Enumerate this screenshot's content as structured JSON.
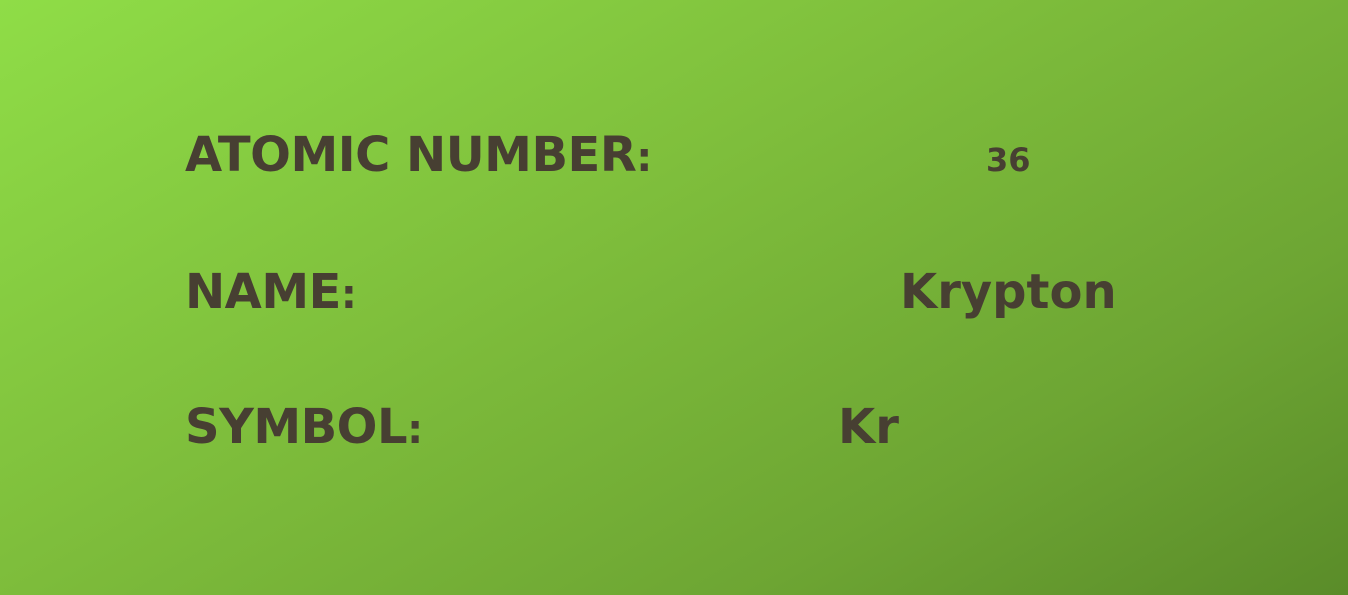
{
  "element": {
    "atomic_number_label": "ATOMIC NUMBER",
    "atomic_number_colon": ":",
    "atomic_number_value": "36",
    "name_label": "NAME",
    "name_colon": ":",
    "name_value": "Krypton",
    "symbol_label": "SYMBOL",
    "symbol_colon": ":",
    "symbol_value": "Kr"
  },
  "colors": {
    "text": "#473f32",
    "background_start": "#8fdd47",
    "background_end": "#5a8c29"
  }
}
